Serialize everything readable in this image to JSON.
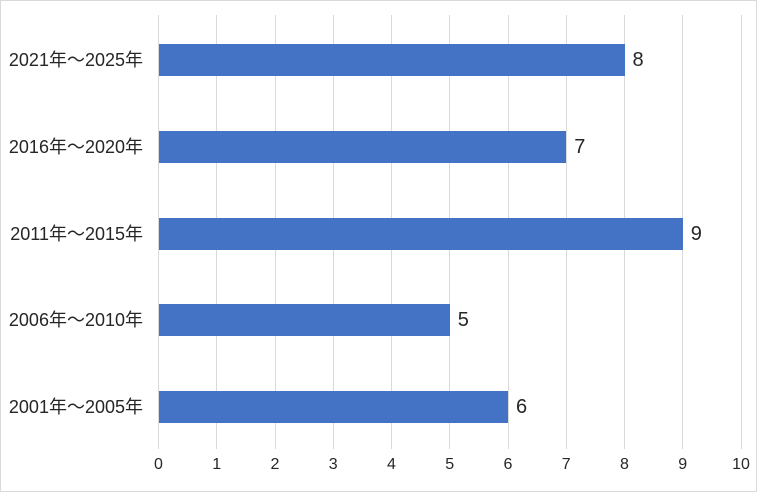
{
  "chart_data": {
    "type": "bar",
    "orientation": "horizontal",
    "title": "",
    "categories": [
      "2021年～2025年",
      "2016年～2020年",
      "2011年～2015年",
      "2006年～2010年",
      "2001年～2005年"
    ],
    "values": [
      8,
      7,
      9,
      5,
      6
    ],
    "data_labels": [
      "8",
      "7",
      "9",
      "5",
      "6"
    ],
    "xlabel": "",
    "ylabel": "",
    "xlim": [
      0,
      10
    ],
    "x_ticks": [
      0,
      1,
      2,
      3,
      4,
      5,
      6,
      7,
      8,
      9,
      10
    ],
    "x_tick_labels": [
      "0",
      "1",
      "2",
      "3",
      "4",
      "5",
      "6",
      "7",
      "8",
      "9",
      "10"
    ],
    "grid": "vertical-major",
    "legend": "none",
    "colors": {
      "bar": "#4472C4",
      "gridline": "#D9D9D9",
      "text": "#262626",
      "background": "#FFFFFF",
      "border": "#D9D9D9"
    }
  }
}
